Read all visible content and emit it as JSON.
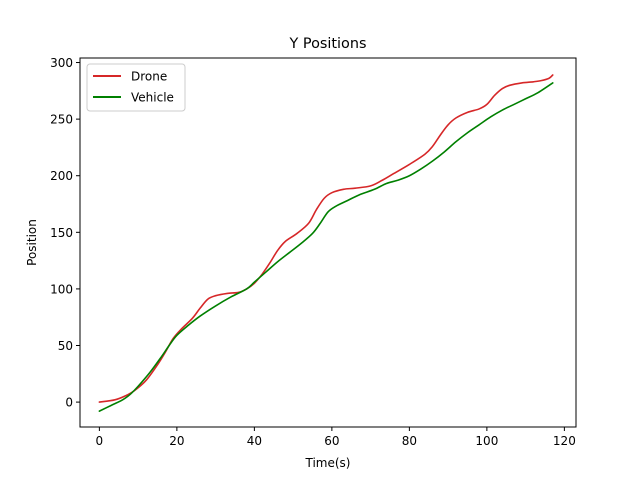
{
  "chart_data": {
    "type": "line",
    "title": "Y Positions",
    "xlabel": "Time(s)",
    "ylabel": "Position",
    "xlim": [
      -5,
      123
    ],
    "ylim": [
      -22,
      304
    ],
    "xticks": [
      0,
      20,
      40,
      60,
      80,
      100,
      120
    ],
    "yticks": [
      0,
      50,
      100,
      150,
      200,
      250,
      300
    ],
    "grid": false,
    "legend_position": "top-left",
    "series": [
      {
        "name": "Drone",
        "color": "#d62728",
        "points": [
          [
            0,
            0
          ],
          [
            4,
            2
          ],
          [
            7,
            6
          ],
          [
            9,
            10
          ],
          [
            12,
            19
          ],
          [
            15,
            33
          ],
          [
            17,
            44
          ],
          [
            19,
            56
          ],
          [
            21,
            64
          ],
          [
            24,
            74
          ],
          [
            26,
            83
          ],
          [
            28,
            91
          ],
          [
            30,
            94
          ],
          [
            33,
            96
          ],
          [
            36,
            97
          ],
          [
            38,
            100
          ],
          [
            40,
            105
          ],
          [
            42,
            113
          ],
          [
            44,
            123
          ],
          [
            46,
            134
          ],
          [
            48,
            142
          ],
          [
            51,
            149
          ],
          [
            54,
            158
          ],
          [
            56,
            170
          ],
          [
            58,
            180
          ],
          [
            60,
            185
          ],
          [
            63,
            188
          ],
          [
            66,
            189
          ],
          [
            70,
            191
          ],
          [
            73,
            196
          ],
          [
            76,
            202
          ],
          [
            80,
            210
          ],
          [
            84,
            219
          ],
          [
            86,
            226
          ],
          [
            88,
            236
          ],
          [
            90,
            245
          ],
          [
            92,
            251
          ],
          [
            95,
            256
          ],
          [
            98,
            259
          ],
          [
            100,
            263
          ],
          [
            102,
            271
          ],
          [
            104,
            277
          ],
          [
            106,
            280
          ],
          [
            109,
            282
          ],
          [
            112,
            283
          ],
          [
            114,
            284
          ],
          [
            116,
            286
          ],
          [
            117,
            289
          ]
        ]
      },
      {
        "name": "Vehicle",
        "color": "#008000",
        "points": [
          [
            0,
            -8
          ],
          [
            3,
            -3
          ],
          [
            6,
            2
          ],
          [
            8,
            7
          ],
          [
            10,
            14
          ],
          [
            13,
            26
          ],
          [
            16,
            40
          ],
          [
            18,
            50
          ],
          [
            20,
            59
          ],
          [
            23,
            68
          ],
          [
            26,
            76
          ],
          [
            30,
            85
          ],
          [
            34,
            93
          ],
          [
            38,
            100
          ],
          [
            40,
            106
          ],
          [
            43,
            115
          ],
          [
            46,
            124
          ],
          [
            49,
            132
          ],
          [
            52,
            140
          ],
          [
            55,
            149
          ],
          [
            57,
            158
          ],
          [
            59,
            168
          ],
          [
            61,
            173
          ],
          [
            64,
            178
          ],
          [
            67,
            183
          ],
          [
            71,
            188
          ],
          [
            74,
            193
          ],
          [
            77,
            196
          ],
          [
            80,
            200
          ],
          [
            83,
            206
          ],
          [
            86,
            213
          ],
          [
            89,
            221
          ],
          [
            92,
            230
          ],
          [
            95,
            238
          ],
          [
            98,
            245
          ],
          [
            101,
            252
          ],
          [
            104,
            258
          ],
          [
            107,
            263
          ],
          [
            110,
            268
          ],
          [
            113,
            273
          ],
          [
            117,
            282
          ]
        ]
      }
    ]
  }
}
